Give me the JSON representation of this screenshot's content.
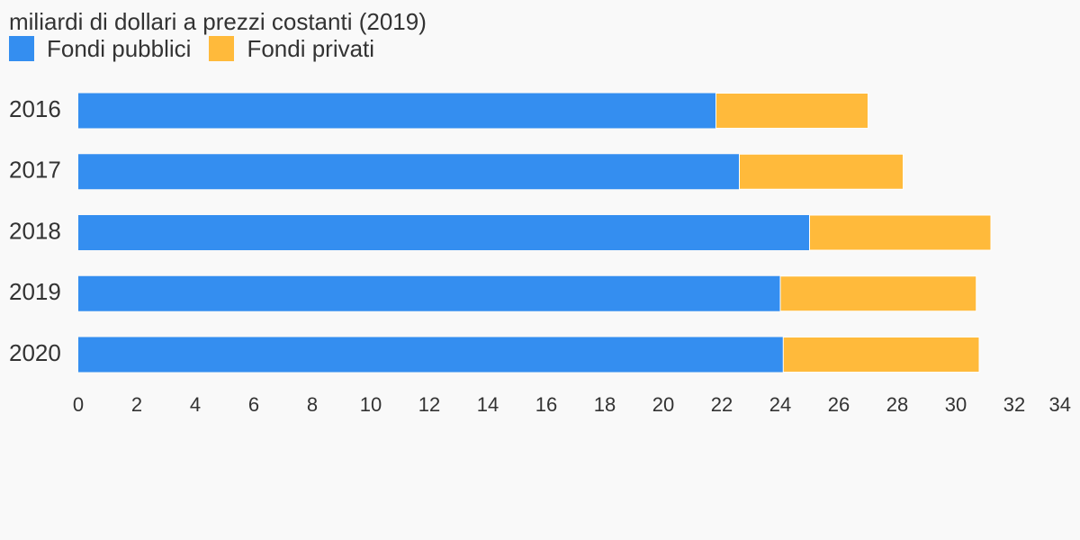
{
  "chart_data": {
    "type": "bar",
    "orientation": "horizontal",
    "stacked": true,
    "title": "miliardi di dollari a prezzi costanti (2019)",
    "xlabel": "",
    "ylabel": "",
    "categories": [
      "2016",
      "2017",
      "2018",
      "2019",
      "2020"
    ],
    "series": [
      {
        "name": "Fondi pubblici",
        "color": "#348ef0",
        "values": [
          21.8,
          22.6,
          25.0,
          24.0,
          24.1
        ]
      },
      {
        "name": "Fondi privati",
        "color": "#ffba3b",
        "values": [
          5.2,
          5.6,
          6.2,
          6.7,
          6.7
        ]
      }
    ],
    "xlim": [
      0,
      34
    ],
    "xticks": [
      "0",
      "2",
      "4",
      "6",
      "8",
      "10",
      "12",
      "14",
      "16",
      "18",
      "20",
      "22",
      "24",
      "26",
      "28",
      "30",
      "32",
      "34"
    ],
    "grid": false,
    "legend_position": "top-left"
  }
}
